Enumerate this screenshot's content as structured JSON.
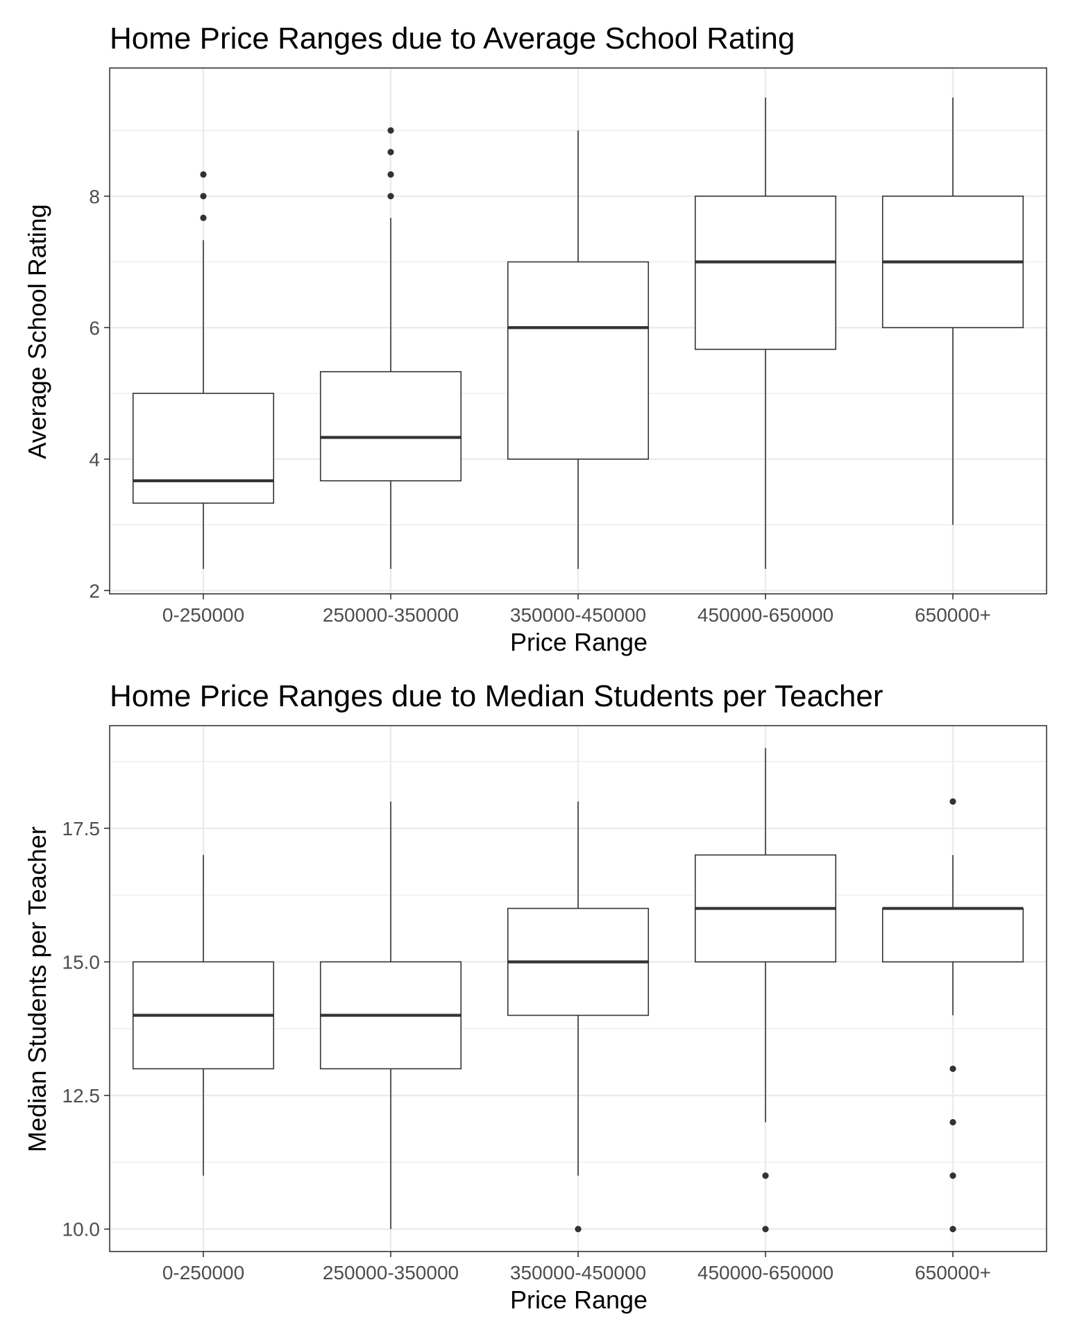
{
  "chart_data": [
    {
      "type": "box",
      "title": "Home Price Ranges due to Average School Rating",
      "xlabel": "Price Range",
      "ylabel": "Average School Rating",
      "ylim": [
        1.95,
        9.95
      ],
      "yticks": [
        2,
        4,
        6,
        8
      ],
      "ytick_labels": [
        "2",
        "4",
        "6",
        "8"
      ],
      "minor_yticks": [
        3,
        5,
        7,
        9
      ],
      "grid": true,
      "categories": [
        "0-250000",
        "250000-350000",
        "350000-450000",
        "450000-650000",
        "650000+"
      ],
      "boxes": [
        {
          "category": "0-250000",
          "whisker_low": 2.33,
          "q1": 3.33,
          "median": 3.67,
          "q3": 5.0,
          "whisker_high": 7.33,
          "outliers": [
            7.67,
            8.0,
            8.33
          ]
        },
        {
          "category": "250000-350000",
          "whisker_low": 2.33,
          "q1": 3.67,
          "median": 4.33,
          "q3": 5.33,
          "whisker_high": 7.67,
          "outliers": [
            8.0,
            8.33,
            8.67,
            9.0
          ]
        },
        {
          "category": "350000-450000",
          "whisker_low": 2.33,
          "q1": 4.0,
          "median": 6.0,
          "q3": 7.0,
          "whisker_high": 9.0,
          "outliers": []
        },
        {
          "category": "450000-650000",
          "whisker_low": 2.33,
          "q1": 5.67,
          "median": 7.0,
          "q3": 8.0,
          "whisker_high": 9.5,
          "outliers": []
        },
        {
          "category": "650000+",
          "whisker_low": 3.0,
          "q1": 6.0,
          "median": 7.0,
          "q3": 8.0,
          "whisker_high": 9.5,
          "outliers": []
        }
      ]
    },
    {
      "type": "box",
      "title": "Home Price Ranges due to Median Students per Teacher",
      "xlabel": "Price Range",
      "ylabel": "Median Students per Teacher",
      "ylim": [
        9.58,
        19.42
      ],
      "yticks": [
        10,
        12.5,
        15,
        17.5
      ],
      "ytick_labels": [
        "10.0",
        "12.5",
        "15.0",
        "17.5"
      ],
      "minor_yticks": [
        11.25,
        13.75,
        16.25,
        18.75
      ],
      "grid": true,
      "categories": [
        "0-250000",
        "250000-350000",
        "350000-450000",
        "450000-650000",
        "650000+"
      ],
      "boxes": [
        {
          "category": "0-250000",
          "whisker_low": 11,
          "q1": 13,
          "median": 14,
          "q3": 15,
          "whisker_high": 17,
          "outliers": []
        },
        {
          "category": "250000-350000",
          "whisker_low": 10,
          "q1": 13,
          "median": 14,
          "q3": 15,
          "whisker_high": 18,
          "outliers": []
        },
        {
          "category": "350000-450000",
          "whisker_low": 11,
          "q1": 14,
          "median": 15,
          "q3": 16,
          "whisker_high": 18,
          "outliers": [
            10
          ]
        },
        {
          "category": "450000-650000",
          "whisker_low": 12,
          "q1": 15,
          "median": 16,
          "q3": 17,
          "whisker_high": 19,
          "outliers": [
            10,
            11
          ]
        },
        {
          "category": "650000+",
          "whisker_low": 14,
          "q1": 15,
          "median": 16,
          "q3": 16,
          "whisker_high": 17,
          "outliers": [
            10,
            11,
            12,
            13,
            18
          ]
        }
      ]
    }
  ]
}
